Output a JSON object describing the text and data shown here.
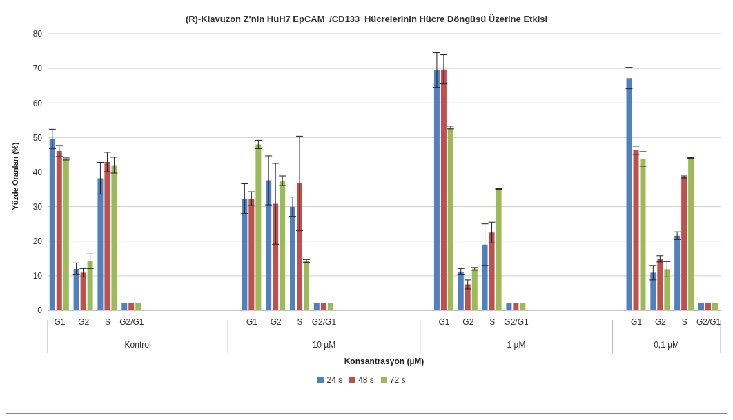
{
  "chart_data": {
    "type": "bar",
    "title": "(R)-Klavuzon Z'nin HuH7 EpCAM$^{-}$ /CD133$^{-}$ Hücrelerinin Hücre Döngüsü Üzerine Etkisi",
    "xlabel": "Konsantrasyon  (µM)",
    "ylabel": "Yüzde Oranları (%)",
    "categories": [
      "G1",
      "G2",
      "S",
      "G2/G1",
      null,
      null,
      null,
      null,
      "G1",
      "G2",
      "S",
      "G2/G1",
      null,
      null,
      null,
      null,
      "G1",
      "G2",
      "S",
      "G2/G1",
      null,
      null,
      null,
      null,
      "G1",
      "G2",
      "S",
      "G2/G1"
    ],
    "annotations": [
      "Kontrol",
      "10 µM",
      "1 µM",
      "0,1 µM"
    ],
    "series": [
      {
        "name": "24 s",
        "color": "#4f81bd",
        "values": [
          49.6,
          12,
          38.2,
          2,
          null,
          null,
          null,
          null,
          32.3,
          37.6,
          30,
          2,
          null,
          null,
          null,
          null,
          69.5,
          11.2,
          19,
          2,
          null,
          null,
          null,
          null,
          67.2,
          10.9,
          21.6,
          2
        ],
        "errors": [
          2.8,
          1.7,
          4.6,
          null,
          null,
          null,
          null,
          null,
          4.3,
          7.1,
          2.8,
          null,
          null,
          null,
          null,
          null,
          5,
          0.9,
          6,
          null,
          null,
          null,
          null,
          null,
          3.1,
          2.1,
          1.1,
          null
        ]
      },
      {
        "name": "48 s",
        "color": "#c0504d",
        "values": [
          46.1,
          10.9,
          42.9,
          2,
          null,
          null,
          null,
          null,
          32.3,
          30.8,
          36.7,
          2,
          null,
          null,
          null,
          null,
          69.7,
          7.5,
          22.5,
          2,
          null,
          null,
          null,
          null,
          46.3,
          14.9,
          38.6,
          2
        ],
        "errors": [
          1.6,
          1.2,
          2.8,
          null,
          null,
          null,
          null,
          null,
          2,
          11.7,
          13.7,
          null,
          null,
          null,
          null,
          null,
          4.2,
          1.3,
          3,
          null,
          null,
          null,
          null,
          null,
          1.2,
          0.9,
          0.3,
          null
        ]
      },
      {
        "name": "72 s",
        "color": "#9bbb59",
        "values": [
          43.8,
          14.2,
          42,
          2,
          null,
          null,
          null,
          null,
          48,
          37.5,
          14.3,
          2,
          null,
          null,
          null,
          null,
          52.9,
          12,
          35.1,
          2,
          null,
          null,
          null,
          null,
          43.8,
          11.9,
          44.1,
          2
        ],
        "errors": [
          0.3,
          2.1,
          2.3,
          null,
          null,
          null,
          null,
          null,
          1.2,
          1.4,
          0.4,
          null,
          null,
          null,
          null,
          null,
          0.4,
          0.4,
          0.1,
          null,
          null,
          null,
          null,
          null,
          2.1,
          2.2,
          0.1,
          null
        ]
      }
    ],
    "ylim": [
      0,
      80
    ],
    "yticks": [
      0,
      10,
      20,
      30,
      40,
      50,
      60,
      70,
      80
    ],
    "grid": "y",
    "legend": "bottom"
  }
}
